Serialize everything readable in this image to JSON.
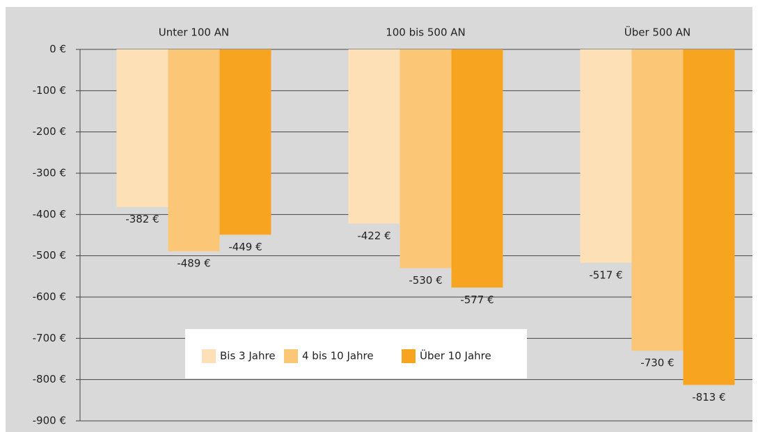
{
  "chart_data": {
    "type": "bar",
    "categories": [
      "Unter 100 AN",
      "100 bis 500 AN",
      "Über 500 AN"
    ],
    "series": [
      {
        "name": "Bis 3 Jahre",
        "color": "#fde0b5",
        "values": [
          -382,
          -422,
          -517
        ],
        "value_labels": [
          "-382 €",
          "-422 €",
          "-517 €"
        ]
      },
      {
        "name": "4 bis 10 Jahre",
        "color": "#fcc677",
        "values": [
          -489,
          -530,
          -730
        ],
        "value_labels": [
          "-489 €",
          "-530 €",
          "-730 €"
        ]
      },
      {
        "name": "Über 10 Jahre",
        "color": "#f7a520",
        "values": [
          -449,
          -577,
          -813
        ],
        "value_labels": [
          "-449 €",
          "-577 €",
          "-813 €"
        ]
      }
    ],
    "ylim": [
      -900,
      0
    ],
    "yticks": [
      {
        "value": 0,
        "label": "0 €"
      },
      {
        "value": -100,
        "label": "-100 €"
      },
      {
        "value": -200,
        "label": "-200 €"
      },
      {
        "value": -300,
        "label": "-300 €"
      },
      {
        "value": -400,
        "label": "-400 €"
      },
      {
        "value": -500,
        "label": "-500 €"
      },
      {
        "value": -600,
        "label": "-600 €"
      },
      {
        "value": -700,
        "label": "-700 €"
      },
      {
        "value": -800,
        "label": "-800 €"
      },
      {
        "value": -900,
        "label": "-900 €"
      }
    ],
    "grid": true
  }
}
